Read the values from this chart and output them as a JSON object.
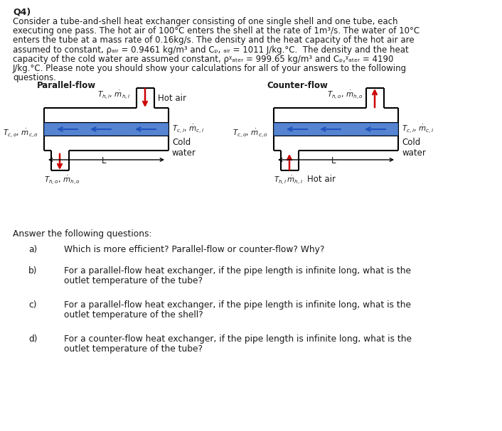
{
  "title": "Q4)",
  "para_lines": [
    "Consider a tube-and-shell heat exchanger consisting of one single shell and one tube, each",
    "executing one pass. The hot air of 100°C enters the shell at the rate of 1m³/s. The water of 10°C",
    "enters the tube at a mass rate of 0.16kg/s. The density and the heat capacity of the hot air are",
    "assumed to constant, ρₐᵢᵣ = 0.9461 kg/m³ and Cₚ, ₐᵢᵣ = 1011 J/kg.°C.  The density and the heat",
    "capacity of the cold water are assumed constant, ρᵡₐₜₑᵣ = 999.65 kg/m³ and Cₚ,ᵡₐₜₑᵣ = 4190",
    "J/kg.°C. Please note you should show your calculations for all of your answers to the following",
    "questions."
  ],
  "bg_color": "#ffffff",
  "text_color": "#1a1a1a",
  "red": "#cc0000",
  "blue": "#2255bb",
  "black": "#000000",
  "tube_blue": "#4477cc",
  "parallel_label": "Parallel-flow",
  "counter_label": "Counter-flow",
  "hot_air": "Hot air",
  "cold_water": "Cold\nwater",
  "L": "L",
  "questions_header": "Answer the following questions:",
  "qa_label": "a)",
  "qb_label": "b)",
  "qc_label": "c)",
  "qd_label": "d)",
  "qa_text": "Which is more efficient? Parallel-flow or counter-flow? Why?",
  "qb_text1": "For a parallel-flow heat exchanger, if the pipe length is infinite long, what is the",
  "qb_text2": "outlet temperature of the tube?",
  "qc_text1": "For a parallel-flow heat exchanger, if the pipe length is infinite long, what is the",
  "qc_text2": "outlet temperature of the shell?",
  "qd_text1": "For a counter-flow heat exchanger, if the pipe length is infinite long, what is the",
  "qd_text2": "outlet temperature of the tube?"
}
